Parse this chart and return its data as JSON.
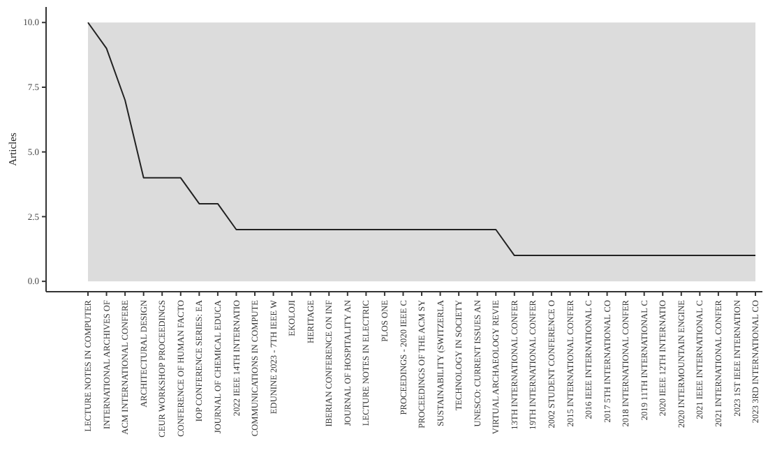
{
  "chart_data": {
    "type": "line",
    "ylabel": "Articles",
    "categories": [
      "LECTURE NOTES IN COMPUTER",
      "INTERNATIONAL ARCHIVES OF",
      "ACM INTERNATIONAL CONFERE",
      "ARCHITECTURAL DESIGN",
      "CEUR WORKSHOP PROCEEDINGS",
      "CONFERENCE OF HUMAN FACTO",
      "IOP CONFERENCE SERIES: EA",
      "JOURNAL OF CHEMICAL EDUCA",
      "2022 IEEE 14TH INTERNATIO",
      "COMMUNICATIONS IN COMPUTE",
      "EDUNINE 2023 - 7TH IEEE W",
      "EKOLOJI",
      "HERITAGE",
      "IBERIAN CONFERENCE ON INF",
      "JOURNAL OF HOSPITALITY AN",
      "LECTURE NOTES IN ELECTRIC",
      "PLOS ONE",
      "PROCEEDINGS - 2020 IEEE C",
      "PROCEEDINGS OF THE ACM SY",
      "SUSTAINABILITY (SWITZERLA",
      "TECHNOLOGY IN SOCIETY",
      "UNESCO: CURRENT ISSUES AN",
      "VIRTUAL ARCHAEOLOGY REVIE",
      "13TH INTERNATIONAL CONFER",
      "19TH INTERNATIONAL CONFER",
      "2002 STUDENT CONFERENCE O",
      "2015 INTERNATIONAL CONFER",
      "2016 IEEE INTERNATIONAL C",
      "2017 5TH INTERNATIONAL CO",
      "2018 INTERNATIONAL CONFER",
      "2019 11TH INTERNATIONAL C",
      "2020 IEEE 12TH INTERNATIO",
      "2020 INTERMOUNTAIN ENGINE",
      "2021 IEEE INTERNATIONAL C",
      "2021 INTERNATIONAL CONFER",
      "2023 1ST IEEE INTERNATION",
      "2023 3RD INTERNATIONAL CO"
    ],
    "series": [
      {
        "color": "#222222",
        "values": [
          10,
          9,
          7,
          4,
          4,
          4,
          3,
          3,
          2,
          2,
          2,
          2,
          2,
          2,
          2,
          2,
          2,
          2,
          2,
          2,
          2,
          2,
          2,
          1,
          1,
          1,
          1,
          1,
          1,
          1,
          1,
          1,
          1,
          1,
          1,
          1,
          1
        ]
      }
    ],
    "ylim": [
      -0.4,
      10.6
    ],
    "yticks": [
      {
        "value": 0,
        "label": "0.0"
      },
      {
        "value": 2.5,
        "label": "2.5"
      },
      {
        "value": 5,
        "label": "5.0"
      },
      {
        "value": 7.5,
        "label": "7.5"
      },
      {
        "value": 10,
        "label": "10.0"
      }
    ],
    "grid": false,
    "marker": "none",
    "line_style": "solid"
  }
}
